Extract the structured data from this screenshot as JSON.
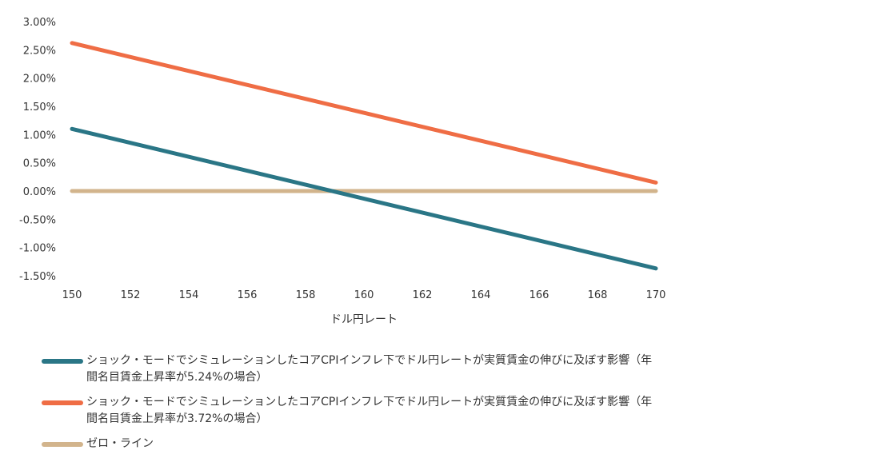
{
  "chart_data": {
    "type": "line",
    "xlabel": "ドル円レート",
    "ylabel": "",
    "xlim": [
      150,
      170
    ],
    "ylim": [
      -1.5,
      3.0
    ],
    "x_ticks": [
      "150",
      "152",
      "154",
      "156",
      "158",
      "160",
      "162",
      "164",
      "166",
      "168",
      "170"
    ],
    "y_ticks": [
      "3.00%",
      "2.50%",
      "2.00%",
      "1.50%",
      "1.00%",
      "0.50%",
      "0.00%",
      "-0.50%",
      "-1.00%",
      "-1.50%"
    ],
    "grid": false,
    "legend_position": "bottom",
    "series": [
      {
        "name": "ショック・モードでシミュレーションしたコアCPIインフレ下でドル円レートが実質賃金の伸びに及ぼす影響（年間名目賃金上昇率が5.24%の場合）",
        "color": "#2a7686",
        "x": [
          150,
          170
        ],
        "values": [
          1.1,
          -1.37
        ]
      },
      {
        "name": "ショック・モードでシミュレーションしたコアCPIインフレ下でドル円レートが実質賃金の伸びに及ぼす影響（年間名目賃金上昇率が3.72%の場合）",
        "color": "#ef6d45",
        "x": [
          150,
          170
        ],
        "values": [
          2.62,
          0.15
        ]
      },
      {
        "name": "ゼロ・ライン",
        "color": "#d2b48c",
        "x": [
          150,
          170
        ],
        "values": [
          0.0,
          0.0
        ]
      }
    ]
  }
}
